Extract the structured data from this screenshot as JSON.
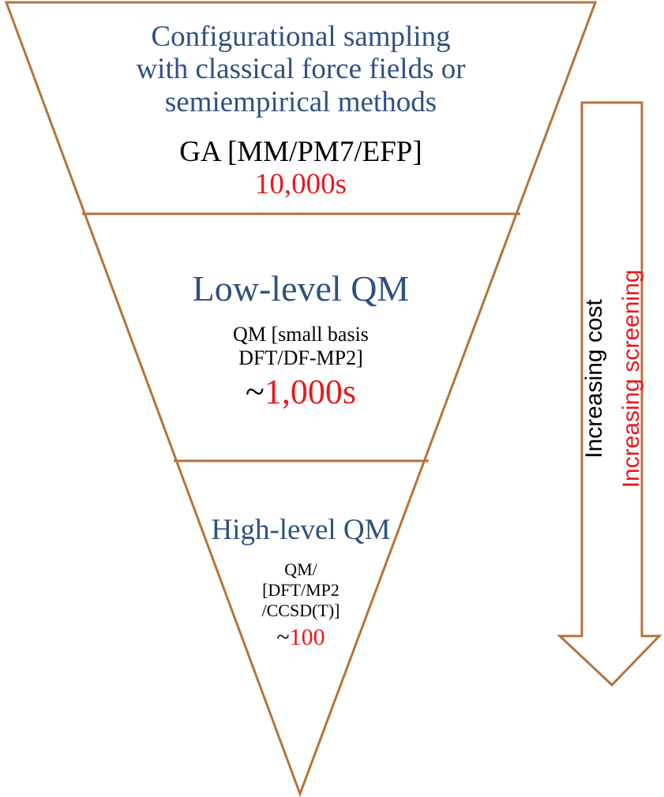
{
  "funnel": {
    "top": {
      "title_lines": [
        "Configurational sampling",
        "with classical force fields or",
        "semiempirical methods"
      ],
      "method": "GA [MM/PM7/EFP]",
      "count": "10,000s"
    },
    "middle": {
      "title": "Low-level QM",
      "method_lines": [
        "QM [small basis",
        "DFT/DF-MP2]"
      ],
      "count_prefix": "~",
      "count": "1,000s"
    },
    "bottom": {
      "title": "High-level QM",
      "method_lines": [
        "QM/",
        "[DFT/MP2",
        "/CCSD(T)]"
      ],
      "count_prefix": "~",
      "count": "100"
    }
  },
  "arrow": {
    "label_cost": "Increasing cost",
    "label_screening": "Increasing screening"
  },
  "colors": {
    "outline": "#b5733a",
    "title_blue": "#2f5182",
    "count_red": "#e8181e",
    "screening_red": "#e8181e",
    "text_black": "#000000"
  }
}
